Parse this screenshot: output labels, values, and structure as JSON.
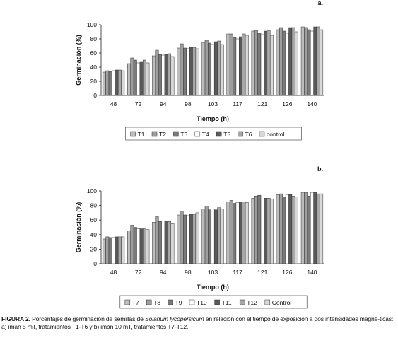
{
  "chart_data": [
    {
      "type": "bar",
      "panel": "a.",
      "xlabel": "Tiempo (h)",
      "ylabel": "Germinación (%)",
      "ylim": [
        0,
        100
      ],
      "yticks": [
        0,
        20,
        40,
        60,
        80,
        100
      ],
      "categories": [
        "48",
        "72",
        "94",
        "98",
        "103",
        "117",
        "121",
        "126",
        "140"
      ],
      "legend_position": "bottom",
      "series": [
        {
          "name": "T1",
          "color": "#bdbdbd",
          "values": [
            33,
            45,
            56,
            67,
            75,
            87,
            91,
            93,
            97
          ]
        },
        {
          "name": "T2",
          "color": "#9e9e9e",
          "values": [
            35,
            53,
            64,
            73,
            78,
            87,
            92,
            96,
            96
          ]
        },
        {
          "name": "T3",
          "color": "#7a7a7a",
          "values": [
            34,
            50,
            58,
            67,
            74,
            82,
            88,
            91,
            93
          ]
        },
        {
          "name": "T4",
          "color": "#ffffff",
          "values": [
            35,
            46,
            57,
            66,
            72,
            80,
            86,
            88,
            91
          ]
        },
        {
          "name": "T5",
          "color": "#5a5a5a",
          "values": [
            36,
            48,
            58,
            68,
            76,
            83,
            91,
            96,
            97
          ]
        },
        {
          "name": "T6",
          "color": "#a8a8a8",
          "values": [
            36,
            50,
            59,
            68,
            77,
            87,
            92,
            96,
            97
          ]
        },
        {
          "name": "control",
          "color": "#d9d9d9",
          "values": [
            35,
            46,
            55,
            66,
            72,
            85,
            85,
            90,
            93
          ]
        }
      ]
    },
    {
      "type": "bar",
      "panel": "b.",
      "xlabel": "Tiempo (h)",
      "ylabel": "Germinación (%)",
      "ylim": [
        0,
        100
      ],
      "yticks": [
        0,
        20,
        40,
        60,
        80,
        100
      ],
      "categories": [
        "48",
        "72",
        "94",
        "98",
        "103",
        "117",
        "121",
        "126",
        "140"
      ],
      "legend_position": "bottom",
      "series": [
        {
          "name": "T7",
          "color": "#bdbdbd",
          "values": [
            34,
            45,
            57,
            67,
            75,
            85,
            90,
            95,
            98
          ]
        },
        {
          "name": "T8",
          "color": "#9e9e9e",
          "values": [
            37,
            53,
            65,
            72,
            79,
            87,
            93,
            96,
            98
          ]
        },
        {
          "name": "T9",
          "color": "#7a7a7a",
          "values": [
            36,
            50,
            58,
            67,
            74,
            83,
            94,
            92,
            93
          ]
        },
        {
          "name": "T10",
          "color": "#ffffff",
          "values": [
            36,
            48,
            59,
            66,
            75,
            84,
            89,
            95,
            98
          ]
        },
        {
          "name": "T11",
          "color": "#5a5a5a",
          "values": [
            37,
            48,
            59,
            68,
            74,
            85,
            90,
            95,
            98
          ]
        },
        {
          "name": "T12",
          "color": "#a8a8a8",
          "values": [
            37,
            48,
            58,
            68,
            77,
            85,
            90,
            93,
            96
          ]
        },
        {
          "name": "Control",
          "color": "#d9d9d9",
          "values": [
            37,
            47,
            55,
            70,
            75,
            84,
            89,
            92,
            96
          ]
        }
      ]
    }
  ],
  "caption": {
    "figure_label": "FIGURA 2.",
    "text_before_species": " Porcentajes de germinación de semillas de ",
    "species": "Solanum lycopersicum",
    "text_after_species": " en relación con el tiempo de exposición a dos intensidades magné-ticas: a) imán 5 mT, tratamientos T1-T6 y b) imán 10 mT, tratamientos T7-T12."
  }
}
